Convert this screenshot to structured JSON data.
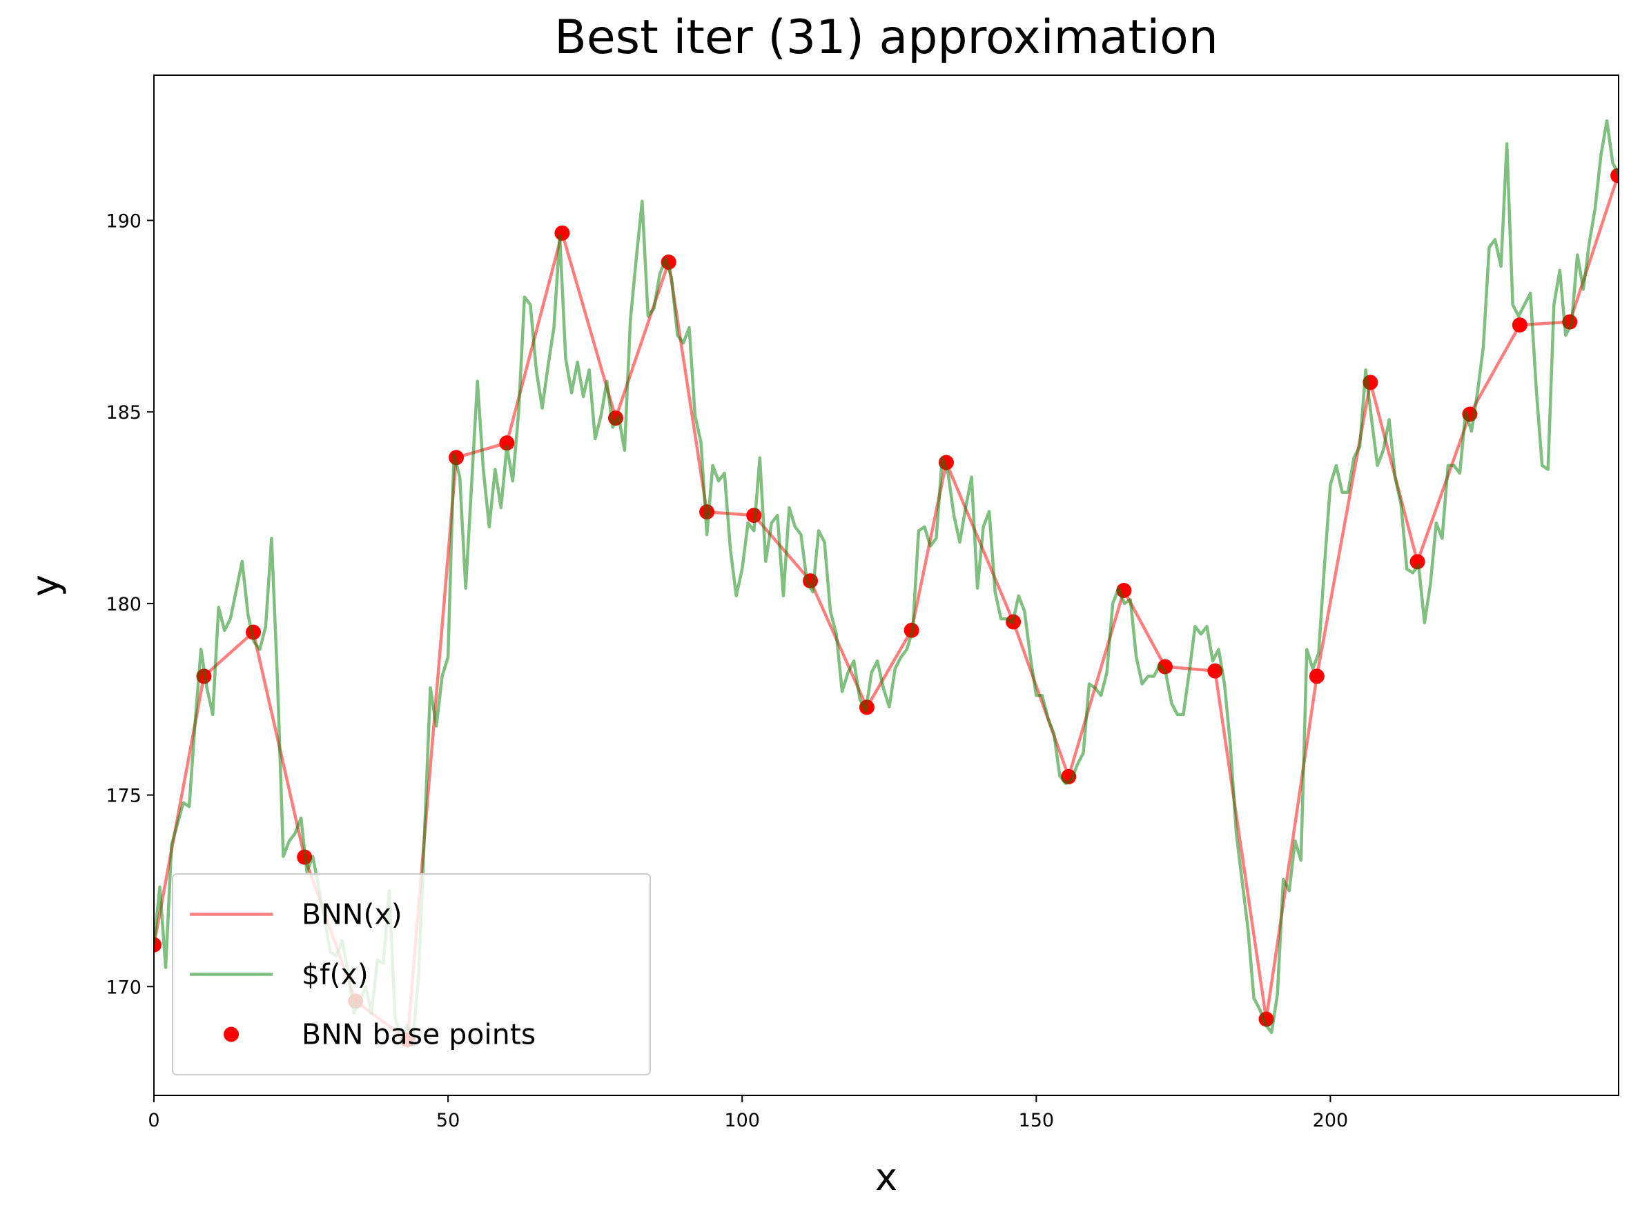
{
  "chart_data": {
    "type": "line",
    "title": "Best iter (31) approximation",
    "x_label": "x",
    "y_label": "y",
    "xlim": [
      0,
      249
    ],
    "ylim": [
      167.16,
      193.79
    ],
    "xticks": [
      0,
      50,
      100,
      150,
      200
    ],
    "yticks": [
      170,
      175,
      180,
      185,
      190
    ],
    "grid": false,
    "legend": "lower left",
    "series": [
      {
        "name": "BNN(x)",
        "type": "line",
        "color": "#ff0000",
        "opacity": 0.5,
        "x": [
          0,
          8.5,
          16.9,
          25.6,
          34.3,
          43.1,
          51.4,
          60.0,
          69.4,
          78.5,
          87.5,
          94.0,
          102.0,
          111.6,
          121.2,
          128.8,
          134.7,
          146.1,
          155.5,
          164.9,
          171.9,
          180.4,
          189.1,
          197.7,
          206.8,
          214.8,
          223.7,
          232.2,
          240.7,
          248.9
        ],
        "values": [
          171.09,
          178.1,
          179.25,
          173.38,
          169.62,
          168.61,
          183.81,
          184.19,
          189.67,
          184.84,
          188.91,
          182.39,
          182.3,
          180.59,
          177.29,
          179.3,
          183.68,
          179.52,
          175.48,
          180.34,
          178.35,
          178.24,
          169.15,
          178.1,
          185.77,
          181.09,
          184.94,
          187.27,
          187.35,
          191.17
        ]
      },
      {
        "name": "$f(x)",
        "type": "line",
        "color": "#008000",
        "opacity": 0.5,
        "x": [
          0,
          1,
          2,
          3,
          5,
          6,
          7,
          8,
          9,
          10,
          11,
          12,
          13,
          15,
          16,
          17,
          18,
          19,
          20,
          21,
          22,
          23,
          24,
          25,
          26,
          27,
          28,
          30,
          31,
          32,
          33,
          34,
          36,
          37,
          38,
          39,
          40,
          41,
          42,
          43,
          44,
          45,
          46,
          47,
          48,
          49,
          50,
          51,
          52,
          53,
          55,
          56,
          57,
          58,
          59,
          60,
          61,
          62,
          63,
          64,
          65,
          66,
          67,
          68,
          69,
          70,
          71,
          72,
          73,
          74,
          75,
          76,
          77,
          78,
          79,
          80,
          81,
          82,
          83,
          84,
          85,
          86,
          87,
          88,
          89,
          90,
          91,
          92,
          93,
          94,
          95,
          96,
          97,
          98,
          99,
          100,
          101,
          102,
          103,
          104,
          105,
          106,
          107,
          108,
          109,
          110,
          111,
          112,
          113,
          114,
          115,
          116,
          117,
          118,
          119,
          120,
          121,
          122,
          123,
          124,
          125,
          126,
          127,
          128,
          129,
          130,
          131,
          132,
          133,
          134,
          135,
          136,
          137,
          138,
          139,
          140,
          141,
          142,
          143,
          144,
          145,
          146,
          147,
          148,
          149,
          150,
          151,
          152,
          153,
          154,
          155,
          156,
          157,
          158,
          159,
          160,
          161,
          162,
          163,
          164,
          165,
          166,
          167,
          168,
          169,
          170,
          171,
          172,
          173,
          174,
          175,
          176,
          177,
          178,
          179,
          180,
          181,
          182,
          183,
          184,
          186,
          187,
          188,
          189,
          190,
          191,
          192,
          193,
          194,
          195,
          196,
          197,
          198,
          199,
          200,
          201,
          202,
          203,
          204,
          205,
          206,
          207,
          208,
          209,
          210,
          211,
          212,
          213,
          214,
          215,
          216,
          217,
          218,
          219,
          220,
          221,
          222,
          223,
          224,
          225,
          226,
          227,
          228,
          229,
          230,
          231,
          232,
          233,
          234,
          235,
          236,
          237,
          238,
          239,
          240,
          241,
          242,
          243,
          244,
          245,
          246,
          247,
          248,
          249
        ],
        "values": [
          171.1,
          172.6,
          170.5,
          173.7,
          174.8,
          174.7,
          176.9,
          178.8,
          177.8,
          177.1,
          179.9,
          179.3,
          179.6,
          181.1,
          179.7,
          179.0,
          178.8,
          179.4,
          181.7,
          178.0,
          173.4,
          173.8,
          174.0,
          174.4,
          173.0,
          173.4,
          172.6,
          170.9,
          170.8,
          171.2,
          170.4,
          169.3,
          170.0,
          169.3,
          170.7,
          170.6,
          172.5,
          169.2,
          168.6,
          169.0,
          168.6,
          170.3,
          174.0,
          177.8,
          176.8,
          178.1,
          178.6,
          183.9,
          183.3,
          180.4,
          185.8,
          183.5,
          182.0,
          183.5,
          182.5,
          184.1,
          183.2,
          185.0,
          188.0,
          187.8,
          186.1,
          185.1,
          186.2,
          187.2,
          189.6,
          186.4,
          185.5,
          186.3,
          185.4,
          186.1,
          184.3,
          184.9,
          185.8,
          184.6,
          184.9,
          184.0,
          187.4,
          189.0,
          190.5,
          187.5,
          187.7,
          188.6,
          189.0,
          188.5,
          187.0,
          186.8,
          187.2,
          184.9,
          184.2,
          181.8,
          183.6,
          183.2,
          183.4,
          181.4,
          180.2,
          180.9,
          182.1,
          181.9,
          183.8,
          181.1,
          182.1,
          182.3,
          180.2,
          182.5,
          182.0,
          181.8,
          180.6,
          180.3,
          181.9,
          181.6,
          179.8,
          179.2,
          177.7,
          178.2,
          178.5,
          177.5,
          177.2,
          178.2,
          178.5,
          177.8,
          177.3,
          178.3,
          178.6,
          178.8,
          179.3,
          181.9,
          182.0,
          181.5,
          181.7,
          183.8,
          183.4,
          182.3,
          181.6,
          182.5,
          183.3,
          180.4,
          182.0,
          182.4,
          180.3,
          179.6,
          179.6,
          179.5,
          180.2,
          179.8,
          178.6,
          177.6,
          177.6,
          177.0,
          176.6,
          175.5,
          175.3,
          175.4,
          175.8,
          176.1,
          177.9,
          177.8,
          177.6,
          178.2,
          180.0,
          180.4,
          180.0,
          180.1,
          178.6,
          177.9,
          178.1,
          178.1,
          178.4,
          178.2,
          177.4,
          177.1,
          177.1,
          178.2,
          179.4,
          179.2,
          179.4,
          178.5,
          178.8,
          177.9,
          176.3,
          174.0,
          171.5,
          169.7,
          169.4,
          169.0,
          168.8,
          169.8,
          172.8,
          172.5,
          173.8,
          173.3,
          178.8,
          178.3,
          178.7,
          181.0,
          183.1,
          183.6,
          182.9,
          182.9,
          183.8,
          184.1,
          186.1,
          184.8,
          183.6,
          184.0,
          184.8,
          183.3,
          182.6,
          180.9,
          180.8,
          181.0,
          179.5,
          180.5,
          182.1,
          181.7,
          183.6,
          183.6,
          183.4,
          185.0,
          184.5,
          185.5,
          186.7,
          189.3,
          189.5,
          188.8,
          192.0,
          187.8,
          187.5,
          187.8,
          188.1,
          185.6,
          183.6,
          183.5,
          187.8,
          188.7,
          187.0,
          187.3,
          189.1,
          188.2,
          189.4,
          190.3,
          191.7,
          192.6,
          191.5,
          191.2
        ]
      },
      {
        "name": "BNN base points",
        "type": "scatter",
        "color": "#ff0000",
        "opacity": 1,
        "x": [
          0,
          8.5,
          16.9,
          25.6,
          34.3,
          43.1,
          51.4,
          60.0,
          69.4,
          78.5,
          87.5,
          94.0,
          102.0,
          111.6,
          121.2,
          128.8,
          134.7,
          146.1,
          155.5,
          164.9,
          171.9,
          180.4,
          189.1,
          197.7,
          206.8,
          214.8,
          223.7,
          232.2,
          240.7,
          248.9
        ],
        "values": [
          171.09,
          178.1,
          179.25,
          173.38,
          169.62,
          168.61,
          183.81,
          184.19,
          189.67,
          184.84,
          188.91,
          182.39,
          182.3,
          180.59,
          177.29,
          179.3,
          183.68,
          179.52,
          175.48,
          180.34,
          178.35,
          178.24,
          169.15,
          178.1,
          185.77,
          181.09,
          184.94,
          187.27,
          187.35,
          191.17
        ]
      }
    ]
  }
}
